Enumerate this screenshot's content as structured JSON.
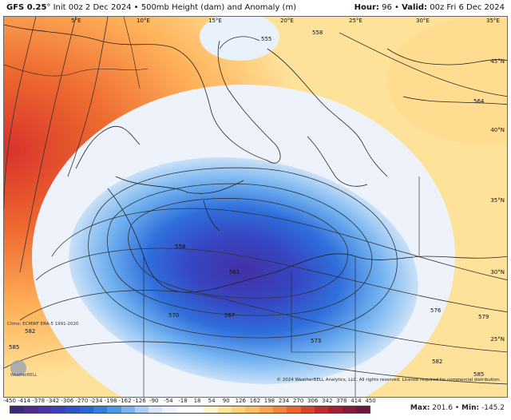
{
  "header": {
    "model": "GFS 0.25",
    "degree": "°",
    "init": "Init 00z 2 Dec 2024",
    "separator": "•",
    "field": "500mb Height (dam) and Anomaly (m)",
    "hour_label": "Hour:",
    "hour_value": "96",
    "valid_label": "Valid:",
    "valid_value": "00z Fri 6 Dec 2024"
  },
  "map": {
    "longitude_labels": [
      "5°E",
      "10°E",
      "15°E",
      "20°E",
      "25°E",
      "30°E",
      "35°E"
    ],
    "latitude_labels": [
      "45°N",
      "40°N",
      "35°N",
      "30°N",
      "25°N"
    ],
    "contour_labels": [
      "555",
      "558",
      "558",
      "561",
      "564",
      "567",
      "570",
      "573",
      "576",
      "579",
      "582",
      "582",
      "585",
      "585"
    ],
    "climo_note": "Climo: ECMWF ERA-5 1991-2020",
    "credit": "© 2024 WeatherBELL Analytics, LLC. All rights reserved. License required for commercial distribution.",
    "logo_text": "WeatherBELL"
  },
  "colorbar": {
    "ticks": [
      "-450",
      "-414",
      "-378",
      "-342",
      "-306",
      "-270",
      "-234",
      "-198",
      "-162",
      "-126",
      "-90",
      "-54",
      "-18",
      "18",
      "54",
      "90",
      "126",
      "162",
      "198",
      "234",
      "270",
      "306",
      "342",
      "378",
      "414",
      "450"
    ],
    "colors": [
      "#3a2a7a",
      "#4a2c92",
      "#4a34a8",
      "#3b3fc0",
      "#2e52cc",
      "#2866d6",
      "#2f7fe0",
      "#4c98e8",
      "#78b4ef",
      "#a8cff5",
      "#d4e6f9",
      "#eef3fb",
      "#ffffff",
      "#ffffff",
      "#fff3c8",
      "#ffe49a",
      "#ffd27a",
      "#ffbe5e",
      "#ffa34a",
      "#f8843a",
      "#ee6330",
      "#dc422a",
      "#c42a2a",
      "#a81f32",
      "#8a1a3a",
      "#6c1640"
    ]
  },
  "stats": {
    "max_label": "Max:",
    "max_value": "201.6",
    "min_label": "Min:",
    "min_value": "-145.2"
  }
}
